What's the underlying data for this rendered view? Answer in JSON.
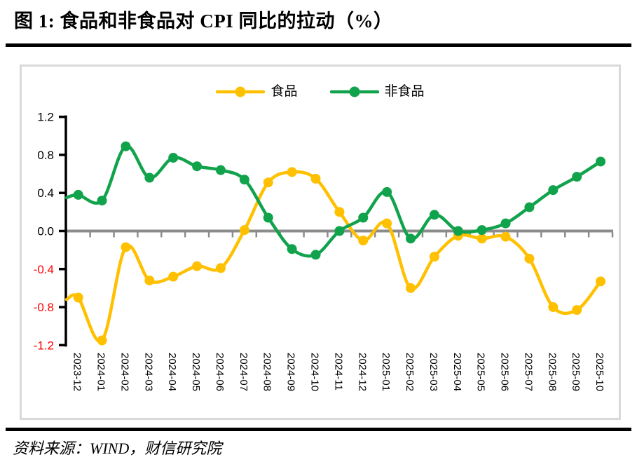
{
  "title": "图 1:  食品和非食品对 CPI 同比的拉动（%）",
  "source": "资料来源：WIND，财信研究院",
  "colors": {
    "food": "#FFC000",
    "nonfood": "#11A34C",
    "zero_line": "#8C8C8C",
    "axis": "#000000",
    "label": "#000000",
    "negative_label": "#FF0000",
    "box_border": "#D9D9D9"
  },
  "chart_data": {
    "type": "line",
    "title": "食品和非食品对 CPI 同比的拉动（%）",
    "smooth": true,
    "legend_position": "top",
    "grid": "zero-line-only",
    "ylim": [
      -1.2,
      1.2
    ],
    "y_ticks": [
      1.2,
      0.8,
      0.4,
      0.0,
      -0.4,
      -0.8,
      -1.2
    ],
    "categories": [
      "2023-12",
      "2024-01",
      "2024-02",
      "2024-03",
      "2024-04",
      "2024-05",
      "2024-06",
      "2024-07",
      "2024-08",
      "2024-09",
      "2024-10",
      "2024-11",
      "2024-12",
      "2025-01",
      "2025-02",
      "2025-03",
      "2025-04",
      "2025-05",
      "2025-06",
      "2025-07",
      "2025-08",
      "2025-09",
      "2025-10"
    ],
    "series": [
      {
        "name": "食品",
        "color_key": "food",
        "left_clip_value": -0.72,
        "values": [
          -0.7,
          -1.15,
          -0.17,
          -0.52,
          -0.48,
          -0.37,
          -0.39,
          0.01,
          0.51,
          0.62,
          0.55,
          0.2,
          -0.1,
          0.08,
          -0.6,
          -0.27,
          -0.05,
          -0.08,
          -0.06,
          -0.29,
          -0.8,
          -0.83,
          -0.53
        ]
      },
      {
        "name": "非食品",
        "color_key": "nonfood",
        "left_clip_value": 0.35,
        "values": [
          0.38,
          0.32,
          0.89,
          0.56,
          0.77,
          0.68,
          0.64,
          0.54,
          0.14,
          -0.19,
          -0.25,
          0.0,
          0.14,
          0.41,
          -0.08,
          0.17,
          0.0,
          0.01,
          0.08,
          0.25,
          0.43,
          0.57,
          0.73
        ]
      }
    ]
  }
}
